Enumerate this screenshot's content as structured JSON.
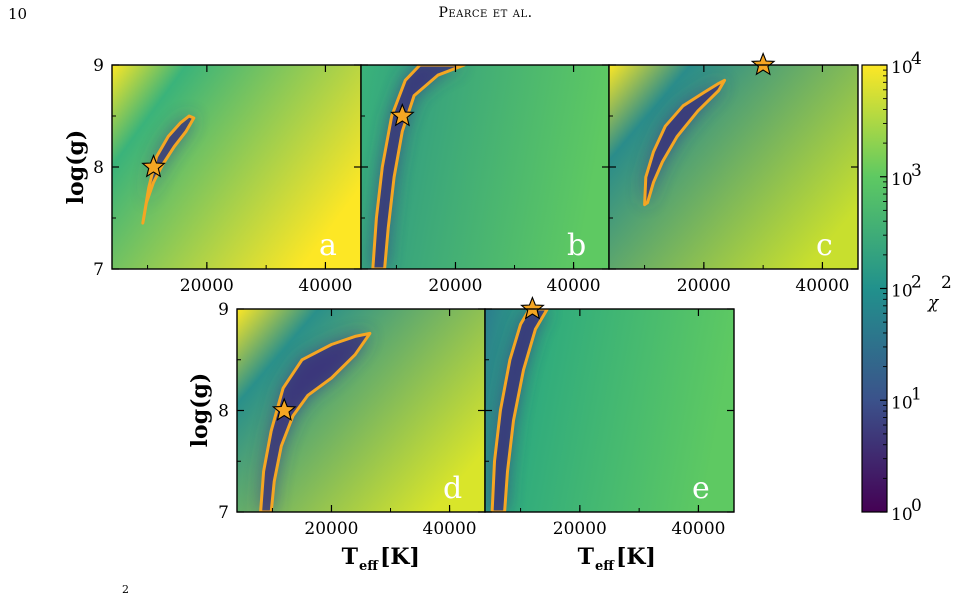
{
  "page": {
    "page_number": "10",
    "running_head": "Pearce et al."
  },
  "chart_data": {
    "type": "heatmap",
    "x_label_main": "T",
    "x_label_sub": "eff",
    "x_label_unit": "[K]",
    "y_label": "log(g)",
    "x_range": [
      4000,
      46000
    ],
    "y_range": [
      7,
      9
    ],
    "x_ticks": [
      20000,
      40000
    ],
    "x_tick_labels": [
      "20000",
      "40000"
    ],
    "y_ticks": [
      7,
      8,
      9
    ],
    "y_tick_labels": [
      "7",
      "8",
      "9"
    ],
    "colorbar": {
      "label": "χ",
      "label_exponent": "2",
      "scale": "log",
      "range": [
        1,
        10000
      ],
      "ticks": [
        1,
        10,
        100,
        1000,
        10000
      ],
      "tick_labels": [
        {
          "base": "10",
          "exp": "0"
        },
        {
          "base": "10",
          "exp": "1"
        },
        {
          "base": "10",
          "exp": "2"
        },
        {
          "base": "10",
          "exp": "3"
        },
        {
          "base": "10",
          "exp": "4"
        }
      ],
      "colormap_stops": [
        "#440154",
        "#3b528b",
        "#21918c",
        "#5ec962",
        "#fde725"
      ]
    },
    "contour_color": "#f5a623",
    "star_color": "#f5a623",
    "panels": [
      {
        "label": "a",
        "best_fit": {
          "teff": 11000,
          "logg": 8.0
        },
        "contour": [
          [
            9200,
            7.45
          ],
          [
            10200,
            7.8
          ],
          [
            11500,
            8.1
          ],
          [
            13500,
            8.3
          ],
          [
            15500,
            8.43
          ],
          [
            17000,
            8.5
          ],
          [
            17800,
            8.48
          ],
          [
            16500,
            8.35
          ],
          [
            14500,
            8.2
          ],
          [
            12500,
            8.02
          ],
          [
            11000,
            7.85
          ],
          [
            9800,
            7.65
          ],
          [
            9300,
            7.48
          ]
        ]
      },
      {
        "label": "b",
        "best_fit": {
          "teff": 11000,
          "logg": 8.5
        },
        "contour": [
          [
            6000,
            7.0
          ],
          [
            6600,
            7.5
          ],
          [
            7600,
            8.0
          ],
          [
            9200,
            8.5
          ],
          [
            11500,
            8.85
          ],
          [
            14000,
            9.0
          ],
          [
            21500,
            9.0
          ],
          [
            17000,
            8.9
          ],
          [
            13000,
            8.7
          ],
          [
            11000,
            8.35
          ],
          [
            9600,
            7.9
          ],
          [
            8600,
            7.4
          ],
          [
            8000,
            7.0
          ]
        ]
      },
      {
        "label": "c",
        "best_fit": {
          "teff": 30000,
          "logg": 9.0
        },
        "contour": [
          [
            10000,
            7.63
          ],
          [
            10200,
            7.9
          ],
          [
            11500,
            8.15
          ],
          [
            13500,
            8.4
          ],
          [
            16500,
            8.6
          ],
          [
            20000,
            8.73
          ],
          [
            22500,
            8.82
          ],
          [
            23500,
            8.85
          ],
          [
            22500,
            8.75
          ],
          [
            19000,
            8.55
          ],
          [
            15500,
            8.3
          ],
          [
            13000,
            8.05
          ],
          [
            11500,
            7.85
          ],
          [
            10500,
            7.65
          ]
        ]
      },
      {
        "label": "d",
        "best_fit": {
          "teff": 12000,
          "logg": 8.0
        },
        "contour": [
          [
            8000,
            7.0
          ],
          [
            8500,
            7.4
          ],
          [
            9800,
            7.8
          ],
          [
            11800,
            8.22
          ],
          [
            15000,
            8.5
          ],
          [
            20000,
            8.65
          ],
          [
            24000,
            8.73
          ],
          [
            26500,
            8.76
          ],
          [
            24000,
            8.55
          ],
          [
            20000,
            8.32
          ],
          [
            16000,
            8.15
          ],
          [
            13500,
            7.95
          ],
          [
            11500,
            7.65
          ],
          [
            10300,
            7.3
          ],
          [
            9800,
            7.0
          ]
        ]
      },
      {
        "label": "e",
        "best_fit": {
          "teff": 12000,
          "logg": 9.0
        },
        "contour": [
          [
            5200,
            7.0
          ],
          [
            5600,
            7.5
          ],
          [
            6600,
            8.0
          ],
          [
            8200,
            8.5
          ],
          [
            10000,
            8.85
          ],
          [
            11500,
            9.0
          ],
          [
            14500,
            9.0
          ],
          [
            12500,
            8.8
          ],
          [
            10500,
            8.4
          ],
          [
            8800,
            7.9
          ],
          [
            7800,
            7.4
          ],
          [
            7300,
            7.0
          ]
        ]
      }
    ]
  },
  "caption": {
    "fragment": "2"
  }
}
